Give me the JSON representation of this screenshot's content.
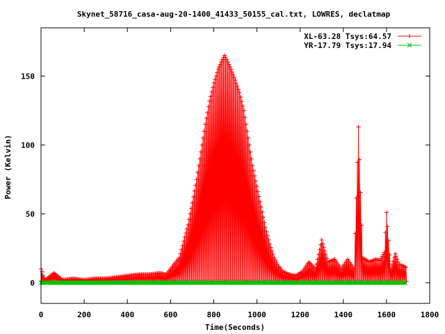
{
  "chart_data": {
    "type": "line",
    "title": "Skynet_58716_casa-aug-20-1400_41433_50155_cal.txt, LOWRES, declatmap",
    "xlabel": "Time(Seconds)",
    "ylabel": "Power (Kelvin)",
    "xlim": [
      0,
      1800
    ],
    "ylim": [
      -15,
      185
    ],
    "x_ticks": [
      0,
      200,
      400,
      600,
      800,
      1000,
      1200,
      1400,
      1600,
      1800
    ],
    "y_ticks": [
      0,
      50,
      100,
      150
    ],
    "grid": false,
    "legend_position": "top-right",
    "series": [
      {
        "name": "XL-63.28 Tsys:64.57",
        "color": "#ff0000",
        "marker": "plus",
        "baseline": 1.0,
        "points": [
          [
            0,
            10
          ],
          [
            5,
            8
          ],
          [
            10,
            5
          ],
          [
            20,
            2
          ],
          [
            60,
            7
          ],
          [
            100,
            2
          ],
          [
            150,
            3
          ],
          [
            200,
            2
          ],
          [
            250,
            3
          ],
          [
            300,
            3
          ],
          [
            350,
            4
          ],
          [
            400,
            5
          ],
          [
            450,
            6
          ],
          [
            500,
            6
          ],
          [
            550,
            7
          ],
          [
            580,
            6
          ],
          [
            600,
            10
          ],
          [
            620,
            14
          ],
          [
            640,
            18
          ],
          [
            660,
            30
          ],
          [
            680,
            42
          ],
          [
            700,
            58
          ],
          [
            720,
            75
          ],
          [
            740,
            95
          ],
          [
            760,
            115
          ],
          [
            780,
            132
          ],
          [
            800,
            145
          ],
          [
            820,
            155
          ],
          [
            840,
            162
          ],
          [
            850,
            165
          ],
          [
            860,
            162
          ],
          [
            880,
            155
          ],
          [
            900,
            147
          ],
          [
            920,
            138
          ],
          [
            940,
            125
          ],
          [
            960,
            105
          ],
          [
            980,
            85
          ],
          [
            1000,
            70
          ],
          [
            1020,
            55
          ],
          [
            1040,
            40
          ],
          [
            1060,
            28
          ],
          [
            1080,
            18
          ],
          [
            1100,
            12
          ],
          [
            1120,
            8
          ],
          [
            1150,
            6
          ],
          [
            1180,
            5
          ],
          [
            1210,
            8
          ],
          [
            1240,
            15
          ],
          [
            1270,
            10
          ],
          [
            1300,
            31
          ],
          [
            1330,
            15
          ],
          [
            1360,
            17
          ],
          [
            1390,
            10
          ],
          [
            1420,
            17
          ],
          [
            1450,
            10
          ],
          [
            1470,
            113
          ],
          [
            1490,
            18
          ],
          [
            1520,
            15
          ],
          [
            1550,
            17
          ],
          [
            1570,
            16
          ],
          [
            1590,
            22
          ],
          [
            1600,
            51
          ],
          [
            1620,
            10
          ],
          [
            1640,
            21
          ],
          [
            1660,
            13
          ],
          [
            1680,
            12
          ],
          [
            1690,
            11
          ]
        ]
      },
      {
        "name": "YR-17.79 Tsys:17.94",
        "color": "#00c000",
        "marker": "cross",
        "x_range": [
          0,
          1690
        ],
        "y_value": 0
      }
    ]
  }
}
